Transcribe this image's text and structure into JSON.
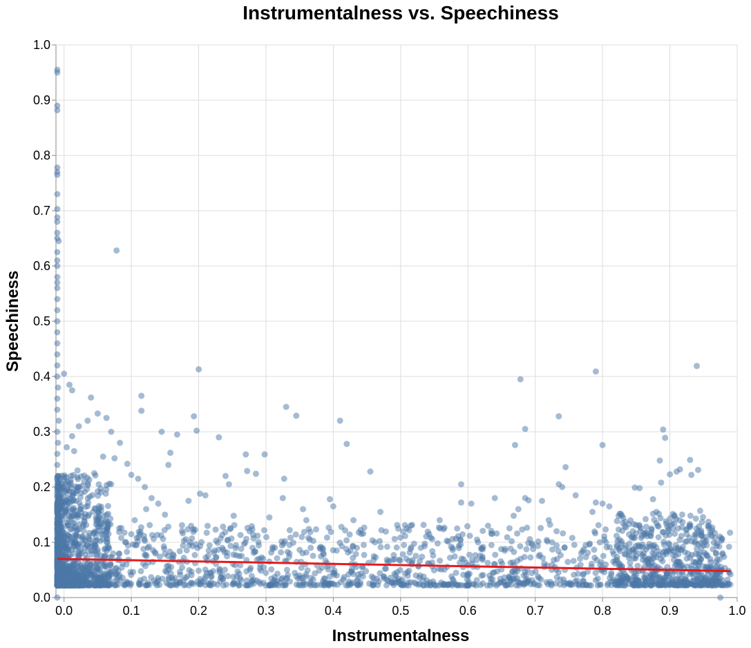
{
  "chart_data": {
    "type": "scatter",
    "title": "Instrumentalness vs. Speechiness",
    "xlabel": "Instrumentalness",
    "ylabel": "Speechiness",
    "xlim": [
      -0.012,
      1.0
    ],
    "ylim": [
      0.0,
      1.0
    ],
    "x_ticks": [
      "0.0",
      "0.1",
      "0.2",
      "0.3",
      "0.4",
      "0.5",
      "0.6",
      "0.7",
      "0.8",
      "0.9",
      "1.0"
    ],
    "y_ticks": [
      "0.0",
      "0.1",
      "0.2",
      "0.3",
      "0.4",
      "0.5",
      "0.6",
      "0.7",
      "0.8",
      "0.9",
      "1.0"
    ],
    "grid": true,
    "colors": {
      "points": "#4c78a8",
      "trend": "#e41a1c"
    },
    "point_opacity": 0.5,
    "trend_line": {
      "x": [
        -0.01,
        0.99
      ],
      "y": [
        0.07,
        0.048
      ]
    },
    "series": [
      {
        "points": [
          [
            -0.01,
            0.955
          ],
          [
            -0.01,
            0.95
          ],
          [
            -0.01,
            0.89
          ],
          [
            -0.01,
            0.882
          ],
          [
            -0.01,
            0.778
          ],
          [
            -0.01,
            0.77
          ],
          [
            -0.01,
            0.765
          ],
          [
            -0.01,
            0.73
          ],
          [
            -0.01,
            0.703
          ],
          [
            -0.01,
            0.688
          ],
          [
            -0.01,
            0.68
          ],
          [
            -0.01,
            0.66
          ],
          [
            -0.01,
            0.65
          ],
          [
            -0.008,
            0.645
          ],
          [
            -0.01,
            0.625
          ],
          [
            -0.01,
            0.61
          ],
          [
            -0.01,
            0.6
          ],
          [
            -0.01,
            0.58
          ],
          [
            -0.01,
            0.57
          ],
          [
            -0.01,
            0.56
          ],
          [
            -0.01,
            0.54
          ],
          [
            -0.01,
            0.52
          ],
          [
            -0.01,
            0.5
          ],
          [
            -0.01,
            0.48
          ],
          [
            -0.01,
            0.46
          ],
          [
            -0.01,
            0.44
          ],
          [
            -0.01,
            0.42
          ],
          [
            -0.01,
            0.4
          ],
          [
            -0.009,
            0.38
          ],
          [
            -0.01,
            0.36
          ],
          [
            -0.01,
            0.34
          ],
          [
            -0.008,
            0.32
          ],
          [
            -0.01,
            0.3
          ],
          [
            -0.009,
            0.28
          ],
          [
            -0.01,
            0.26
          ],
          [
            -0.01,
            0.24
          ],
          [
            -0.008,
            0.22
          ],
          [
            -0.01,
            0.2
          ],
          [
            -0.007,
            0.18
          ],
          [
            -0.01,
            0.16
          ],
          [
            -0.006,
            0.14
          ],
          [
            -0.01,
            0.0
          ],
          [
            0.0,
            0.405
          ],
          [
            0.008,
            0.385
          ],
          [
            0.012,
            0.375
          ],
          [
            0.04,
            0.362
          ],
          [
            0.05,
            0.333
          ],
          [
            0.063,
            0.325
          ],
          [
            0.035,
            0.32
          ],
          [
            0.022,
            0.31
          ],
          [
            0.07,
            0.3
          ],
          [
            0.012,
            0.292
          ],
          [
            0.083,
            0.28
          ],
          [
            0.004,
            0.272
          ],
          [
            0.015,
            0.265
          ],
          [
            0.058,
            0.255
          ],
          [
            0.075,
            0.252
          ],
          [
            0.094,
            0.242
          ],
          [
            0.02,
            0.23
          ],
          [
            0.045,
            0.225
          ],
          [
            0.1,
            0.222
          ],
          [
            0.03,
            0.21
          ],
          [
            0.07,
            0.205
          ],
          [
            0.078,
            0.628
          ],
          [
            0.115,
            0.365
          ],
          [
            0.115,
            0.338
          ],
          [
            0.145,
            0.3
          ],
          [
            0.168,
            0.295
          ],
          [
            0.158,
            0.262
          ],
          [
            0.155,
            0.24
          ],
          [
            0.11,
            0.215
          ],
          [
            0.12,
            0.2
          ],
          [
            0.13,
            0.18
          ],
          [
            0.14,
            0.17
          ],
          [
            0.122,
            0.16
          ],
          [
            0.15,
            0.15
          ],
          [
            0.105,
            0.14
          ],
          [
            0.2,
            0.413
          ],
          [
            0.193,
            0.328
          ],
          [
            0.197,
            0.302
          ],
          [
            0.23,
            0.29
          ],
          [
            0.202,
            0.188
          ],
          [
            0.21,
            0.185
          ],
          [
            0.185,
            0.175
          ],
          [
            0.24,
            0.22
          ],
          [
            0.245,
            0.205
          ],
          [
            0.252,
            0.148
          ],
          [
            0.27,
            0.259
          ],
          [
            0.298,
            0.259
          ],
          [
            0.285,
            0.224
          ],
          [
            0.272,
            0.229
          ],
          [
            0.33,
            0.345
          ],
          [
            0.345,
            0.329
          ],
          [
            0.327,
            0.215
          ],
          [
            0.325,
            0.18
          ],
          [
            0.355,
            0.16
          ],
          [
            0.305,
            0.145
          ],
          [
            0.36,
            0.14
          ],
          [
            0.41,
            0.32
          ],
          [
            0.42,
            0.278
          ],
          [
            0.395,
            0.178
          ],
          [
            0.4,
            0.165
          ],
          [
            0.43,
            0.14
          ],
          [
            0.455,
            0.228
          ],
          [
            0.47,
            0.155
          ],
          [
            0.59,
            0.205
          ],
          [
            0.59,
            0.172
          ],
          [
            0.558,
            0.14
          ],
          [
            0.605,
            0.17
          ],
          [
            0.64,
            0.18
          ],
          [
            0.67,
            0.276
          ],
          [
            0.678,
            0.395
          ],
          [
            0.685,
            0.305
          ],
          [
            0.685,
            0.18
          ],
          [
            0.69,
            0.176
          ],
          [
            0.675,
            0.16
          ],
          [
            0.668,
            0.148
          ],
          [
            0.71,
            0.175
          ],
          [
            0.735,
            0.328
          ],
          [
            0.745,
            0.236
          ],
          [
            0.735,
            0.205
          ],
          [
            0.74,
            0.2
          ],
          [
            0.76,
            0.185
          ],
          [
            0.72,
            0.14
          ],
          [
            0.79,
            0.409
          ],
          [
            0.8,
            0.276
          ],
          [
            0.79,
            0.172
          ],
          [
            0.8,
            0.17
          ],
          [
            0.81,
            0.165
          ],
          [
            0.785,
            0.155
          ],
          [
            0.83,
            0.135
          ],
          [
            0.848,
            0.199
          ],
          [
            0.855,
            0.198
          ],
          [
            0.875,
            0.178
          ],
          [
            0.89,
            0.304
          ],
          [
            0.893,
            0.289
          ],
          [
            0.885,
            0.248
          ],
          [
            0.9,
            0.223
          ],
          [
            0.91,
            0.228
          ],
          [
            0.915,
            0.232
          ],
          [
            0.887,
            0.208
          ],
          [
            0.88,
            0.155
          ],
          [
            0.94,
            0.419
          ],
          [
            0.93,
            0.249
          ],
          [
            0.942,
            0.231
          ],
          [
            0.932,
            0.222
          ],
          [
            0.945,
            0.157
          ],
          [
            0.958,
            0.13
          ],
          [
            0.96,
            0.118
          ],
          [
            0.97,
            0.098
          ],
          [
            0.978,
            0.078
          ],
          [
            0.99,
            0.042
          ],
          [
            0.975,
            0.0
          ],
          [
            0.003,
            0.19
          ],
          [
            0.018,
            0.175
          ],
          [
            0.025,
            0.16
          ],
          [
            0.037,
            0.15
          ],
          [
            0.048,
            0.14
          ],
          [
            0.052,
            0.128
          ],
          [
            0.066,
            0.115
          ],
          [
            0.085,
            0.108
          ],
          [
            0.092,
            0.1
          ],
          [
            0.108,
            0.095
          ],
          [
            0.118,
            0.088
          ],
          [
            0.135,
            0.082
          ],
          [
            0.162,
            0.078
          ],
          [
            0.178,
            0.072
          ],
          [
            0.186,
            0.095
          ],
          [
            0.215,
            0.085
          ],
          [
            0.235,
            0.09
          ],
          [
            0.26,
            0.075
          ],
          [
            0.28,
            0.09
          ],
          [
            0.31,
            0.088
          ],
          [
            0.335,
            0.095
          ],
          [
            0.365,
            0.105
          ],
          [
            0.38,
            0.09
          ],
          [
            0.405,
            0.085
          ],
          [
            0.435,
            0.09
          ],
          [
            0.462,
            0.1
          ],
          [
            0.48,
            0.092
          ],
          [
            0.505,
            0.095
          ],
          [
            0.53,
            0.09
          ],
          [
            0.555,
            0.098
          ],
          [
            0.575,
            0.092
          ],
          [
            0.615,
            0.1
          ],
          [
            0.635,
            0.095
          ],
          [
            0.655,
            0.088
          ],
          [
            0.695,
            0.098
          ],
          [
            0.725,
            0.1
          ],
          [
            0.755,
            0.108
          ],
          [
            0.775,
            0.095
          ],
          [
            0.805,
            0.1
          ],
          [
            0.825,
            0.105
          ],
          [
            0.845,
            0.12
          ],
          [
            0.865,
            0.128
          ],
          [
            0.882,
            0.13
          ],
          [
            0.898,
            0.12
          ],
          [
            0.912,
            0.125
          ],
          [
            0.925,
            0.115
          ],
          [
            0.938,
            0.11
          ],
          [
            0.952,
            0.1
          ]
        ]
      }
    ]
  }
}
